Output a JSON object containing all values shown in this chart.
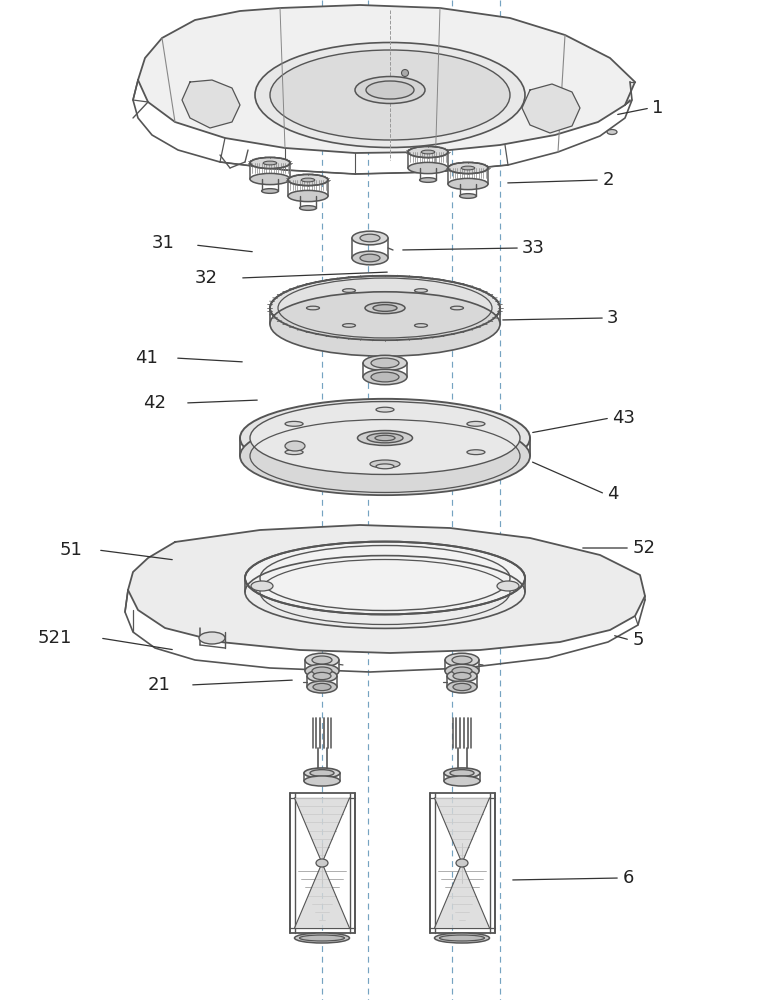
{
  "bg_color": "#ffffff",
  "lc": "#555555",
  "lcd": "#333333",
  "dc": "#6699bb",
  "label_fs": 13,
  "fig_w": 7.58,
  "fig_h": 10.0
}
